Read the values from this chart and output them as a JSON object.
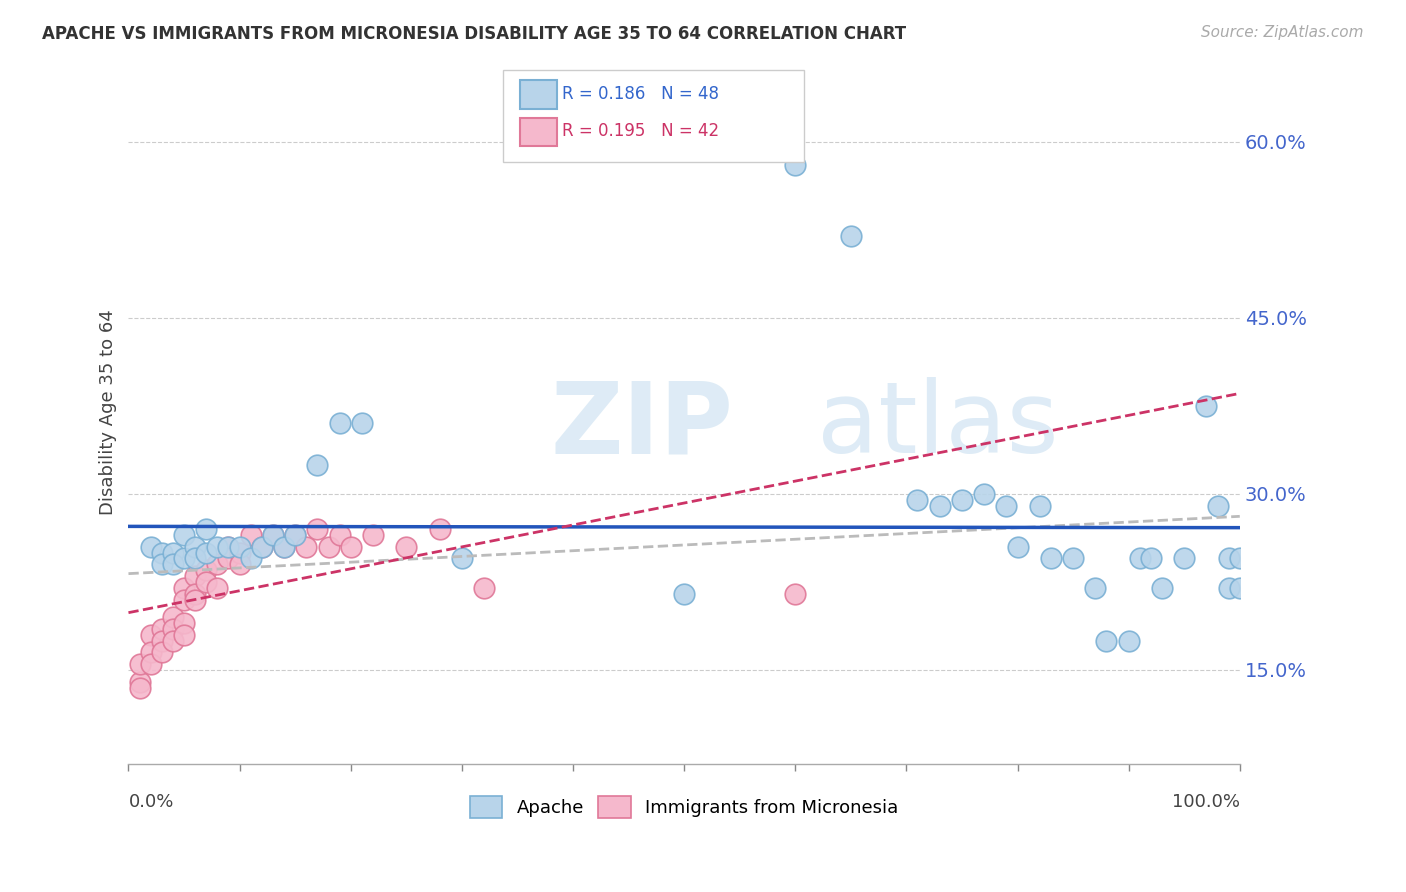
{
  "title": "APACHE VS IMMIGRANTS FROM MICRONESIA DISABILITY AGE 35 TO 64 CORRELATION CHART",
  "source": "Source: ZipAtlas.com",
  "ylabel": "Disability Age 35 to 64",
  "yticks": [
    0.15,
    0.3,
    0.45,
    0.6
  ],
  "ytick_labels": [
    "15.0%",
    "30.0%",
    "45.0%",
    "60.0%"
  ],
  "xlim": [
    0.0,
    1.0
  ],
  "ylim": [
    0.07,
    0.67
  ],
  "legend_r1": "R = 0.186",
  "legend_n1": "N = 48",
  "legend_r2": "R = 0.195",
  "legend_n2": "N = 42",
  "apache_color": "#b8d4ea",
  "apache_edge_color": "#7ab0d4",
  "micronesia_color": "#f5b8cc",
  "micronesia_edge_color": "#e07898",
  "trend_apache_color": "#2255bb",
  "trend_micronesia_color": "#cc3366",
  "trend_gray_color": "#bbbbbb",
  "watermark_zip": "ZIP",
  "watermark_atlas": "atlas",
  "apache_x": [
    0.02,
    0.03,
    0.03,
    0.04,
    0.04,
    0.05,
    0.05,
    0.06,
    0.06,
    0.07,
    0.07,
    0.08,
    0.09,
    0.1,
    0.11,
    0.12,
    0.13,
    0.14,
    0.15,
    0.17,
    0.19,
    0.21,
    0.3,
    0.71,
    0.73,
    0.75,
    0.77,
    0.79,
    0.8,
    0.82,
    0.83,
    0.85,
    0.87,
    0.88,
    0.9,
    0.91,
    0.92,
    0.93,
    0.95,
    0.97,
    0.98,
    0.99,
    0.99,
    1.0,
    1.0,
    0.5,
    0.6,
    0.65
  ],
  "apache_y": [
    0.255,
    0.25,
    0.24,
    0.25,
    0.24,
    0.265,
    0.245,
    0.255,
    0.245,
    0.27,
    0.25,
    0.255,
    0.255,
    0.255,
    0.245,
    0.255,
    0.265,
    0.255,
    0.265,
    0.325,
    0.36,
    0.36,
    0.245,
    0.295,
    0.29,
    0.295,
    0.3,
    0.29,
    0.255,
    0.29,
    0.245,
    0.245,
    0.22,
    0.175,
    0.175,
    0.245,
    0.245,
    0.22,
    0.245,
    0.375,
    0.29,
    0.245,
    0.22,
    0.245,
    0.22,
    0.215,
    0.58,
    0.52
  ],
  "micronesia_x": [
    0.01,
    0.01,
    0.01,
    0.02,
    0.02,
    0.02,
    0.03,
    0.03,
    0.03,
    0.04,
    0.04,
    0.04,
    0.05,
    0.05,
    0.05,
    0.05,
    0.06,
    0.06,
    0.06,
    0.07,
    0.07,
    0.08,
    0.08,
    0.09,
    0.09,
    0.1,
    0.1,
    0.11,
    0.12,
    0.13,
    0.14,
    0.15,
    0.16,
    0.17,
    0.18,
    0.19,
    0.2,
    0.22,
    0.25,
    0.28,
    0.32,
    0.6
  ],
  "micronesia_y": [
    0.14,
    0.155,
    0.135,
    0.18,
    0.165,
    0.155,
    0.185,
    0.175,
    0.165,
    0.195,
    0.185,
    0.175,
    0.22,
    0.21,
    0.19,
    0.18,
    0.23,
    0.215,
    0.21,
    0.235,
    0.225,
    0.24,
    0.22,
    0.255,
    0.245,
    0.25,
    0.24,
    0.265,
    0.255,
    0.265,
    0.255,
    0.265,
    0.255,
    0.27,
    0.255,
    0.265,
    0.255,
    0.265,
    0.255,
    0.27,
    0.22,
    0.215
  ]
}
